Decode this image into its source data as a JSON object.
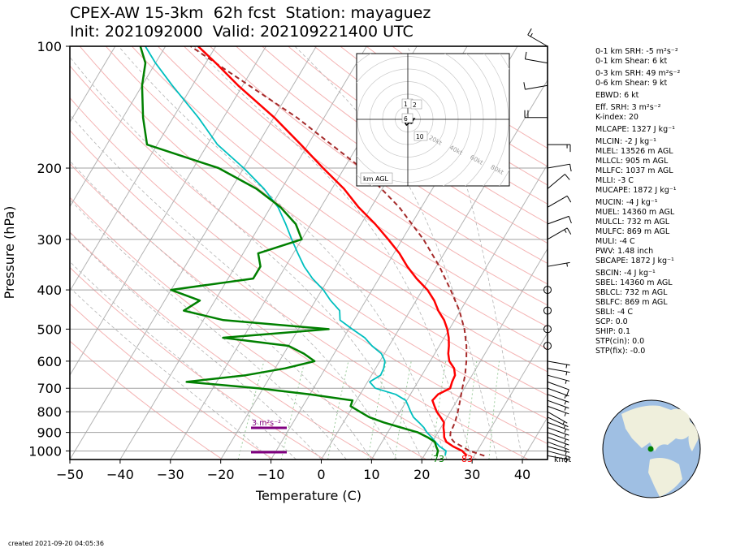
{
  "title": {
    "line1": "CPEX-AW 15-3km  62h fcst  Station: mayaguez",
    "line2": "Init: 2021092000  Valid: 202109221400 UTC"
  },
  "axes": {
    "ylabel": "Pressure (hPa)",
    "xlabel": "Temperature (C)",
    "pressure_ticks": [
      "100",
      "200",
      "300",
      "400",
      "500",
      "600",
      "700",
      "800",
      "900",
      "1000"
    ],
    "temp_ticks": [
      "−50",
      "−40",
      "−30",
      "−20",
      "−10",
      "0",
      "10",
      "20",
      "30",
      "40"
    ]
  },
  "surface_labels": {
    "dewpoint": "73",
    "temperature": "83"
  },
  "srh_label": "3 m²s⁻²",
  "barb_unit": "knot",
  "hodograph": {
    "ring_labels": [
      "20kt",
      "40kt",
      "60kt",
      "80kt"
    ],
    "level_labels": [
      "1",
      "2",
      "6",
      "10"
    ],
    "corner_label": "km AGL"
  },
  "params": [
    {
      "text": "0-1 km SRH: -5 m²s⁻²",
      "gap": false
    },
    {
      "text": "0-1 km Shear: 6 kt",
      "gap": false
    },
    {
      "text": "0-3 km SRH: 49 m²s⁻²",
      "gap": true
    },
    {
      "text": "0-6 km Shear: 9 kt",
      "gap": false
    },
    {
      "text": "EBWD: 6 kt",
      "gap": true
    },
    {
      "text": "Eff. SRH: 3 m²s⁻²",
      "gap": true
    },
    {
      "text": "K-index: 20",
      "gap": false
    },
    {
      "text": "MLCAPE: 1327 J kg⁻¹",
      "gap": true
    },
    {
      "text": "MLCIN: -2 J kg⁻¹",
      "gap": true
    },
    {
      "text": "MLEL: 13526 m AGL",
      "gap": false
    },
    {
      "text": "MLLCL: 905 m AGL",
      "gap": false
    },
    {
      "text": "MLLFC: 1037 m AGL",
      "gap": false
    },
    {
      "text": "MLLI: -3 C",
      "gap": false
    },
    {
      "text": "MUCAPE: 1872 J kg⁻¹",
      "gap": false
    },
    {
      "text": "MUCIN: -4 J kg⁻¹",
      "gap": true
    },
    {
      "text": "MUEL: 14360 m AGL",
      "gap": false
    },
    {
      "text": "MULCL: 732 m AGL",
      "gap": false
    },
    {
      "text": "MULFC: 869 m AGL",
      "gap": false
    },
    {
      "text": "MULI: -4 C",
      "gap": false
    },
    {
      "text": "PWV: 1.48 inch",
      "gap": false
    },
    {
      "text": "SBCAPE: 1872 J kg⁻¹",
      "gap": false
    },
    {
      "text": "SBCIN: -4 J kg⁻¹",
      "gap": true
    },
    {
      "text": "SBEL: 14360 m AGL",
      "gap": false
    },
    {
      "text": "SBLCL: 732 m AGL",
      "gap": false
    },
    {
      "text": "SBLFC: 869 m AGL",
      "gap": false
    },
    {
      "text": "SBLI: -4 C",
      "gap": false
    },
    {
      "text": "SCP: 0.0",
      "gap": false
    },
    {
      "text": "SHIP: 0.1",
      "gap": false
    },
    {
      "text": "STP(cin): 0.0",
      "gap": false
    },
    {
      "text": "STP(fix): -0.0",
      "gap": false
    }
  ],
  "created": "created 2021-09-20 04:05:36",
  "colors": {
    "temperature": "#ff0000",
    "dewpoint": "#008000",
    "wetbulb": "#00bfbf",
    "parcel": "#a52a2a",
    "srh_bar": "#800080",
    "isotherm": "#b3b3b3",
    "dry_adiabat": "#f4b3b3",
    "mixing_ratio": "#9ccc9c"
  },
  "chart_data": {
    "type": "skew-t",
    "title": "CPEX-AW 15-3km  62h fcst  Station: mayaguez",
    "xlabel": "Temperature (C)",
    "ylabel": "Pressure (hPa)",
    "xlim": [
      -50,
      45
    ],
    "ylim": [
      1050,
      100
    ],
    "y_scale": "log",
    "skew_c_per_decade": 48,
    "series": [
      {
        "name": "temperature",
        "pressure": [
          1028,
          1000,
          975,
          950,
          925,
          900,
          875,
          850,
          825,
          800,
          775,
          750,
          725,
          700,
          675,
          650,
          625,
          600,
          575,
          550,
          525,
          500,
          475,
          450,
          425,
          400,
          375,
          350,
          325,
          300,
          275,
          250,
          225,
          200,
          175,
          150,
          125,
          110,
          100
        ],
        "values": [
          28.5,
          27.0,
          24.7,
          22.8,
          21.8,
          21.2,
          20.5,
          20.0,
          18.7,
          17.3,
          16.2,
          15.1,
          15.5,
          17.2,
          16.8,
          16.6,
          15.6,
          13.8,
          12.7,
          11.9,
          10.9,
          9.6,
          7.9,
          5.6,
          3.6,
          1.0,
          -2.5,
          -5.8,
          -8.9,
          -12.8,
          -17.2,
          -22.5,
          -27.6,
          -34.2,
          -41.4,
          -49.9,
          -60.9,
          -68.0,
          -73.5
        ]
      },
      {
        "name": "dewpoint",
        "pressure": [
          1028,
          1000,
          975,
          950,
          925,
          900,
          875,
          850,
          825,
          800,
          775,
          750,
          725,
          700,
          675,
          650,
          625,
          600,
          575,
          550,
          525,
          500,
          475,
          450,
          425,
          400,
          375,
          350,
          325,
          300,
          275,
          250,
          225,
          200,
          175,
          150,
          125,
          110,
          100
        ],
        "values": [
          22.5,
          22.2,
          21.3,
          20.5,
          18.5,
          16.0,
          12.0,
          8.0,
          4.5,
          2.0,
          -0.5,
          -0.8,
          -10.0,
          -21.0,
          -36.0,
          -25.0,
          -18.0,
          -13.0,
          -16.0,
          -20.0,
          -34.0,
          -14.0,
          -36.0,
          -45.0,
          -43.0,
          -50.0,
          -35.0,
          -35.0,
          -37.0,
          -30.0,
          -33.0,
          -38.0,
          -45.0,
          -55.0,
          -72.0,
          -76.0,
          -80.0,
          -82.0,
          -85.0
        ]
      },
      {
        "name": "wet-bulb",
        "pressure": [
          1028,
          1000,
          975,
          950,
          925,
          900,
          875,
          850,
          825,
          800,
          775,
          750,
          725,
          700,
          675,
          650,
          625,
          600,
          575,
          550,
          525,
          500,
          475,
          450,
          425,
          400,
          375,
          350,
          325,
          300,
          275,
          250,
          225,
          200,
          175,
          150,
          125,
          110,
          100
        ],
        "values": [
          24.2,
          23.8,
          22.0,
          20.6,
          19.3,
          17.8,
          16.6,
          15.0,
          13.3,
          12.1,
          11.0,
          9.8,
          7.1,
          2.3,
          0.4,
          1.8,
          1.6,
          1.0,
          -0.6,
          -3.4,
          -5.8,
          -9.3,
          -12.8,
          -14.0,
          -17.0,
          -19.7,
          -23.2,
          -26.3,
          -29.1,
          -32.0,
          -35.0,
          -38.5,
          -43.5,
          -50.0,
          -58.0,
          -65.0,
          -74.0,
          -80.0,
          -84.0
        ]
      },
      {
        "name": "parcel",
        "pressure": [
          1028,
          1000,
          950,
          925,
          900,
          850,
          800,
          750,
          700,
          650,
          600,
          550,
          500,
          450,
          400,
          350,
          300,
          250,
          200,
          150,
          100
        ],
        "values": [
          32.0,
          28.5,
          24.3,
          23.0,
          22.5,
          22.2,
          21.5,
          20.6,
          19.6,
          18.6,
          17.2,
          15.4,
          13.0,
          9.8,
          5.6,
          0.6,
          -5.8,
          -14.4,
          -26.6,
          -45.4,
          -75.0
        ]
      }
    ],
    "wind_barbs": {
      "unit": "knot",
      "pressure": [
        1028,
        1000,
        975,
        950,
        925,
        900,
        875,
        850,
        825,
        800,
        775,
        750,
        725,
        700,
        675,
        650,
        625,
        600,
        550,
        500,
        450,
        400,
        350,
        300,
        275,
        250,
        225,
        200,
        175,
        150,
        125,
        110,
        100
      ],
      "speed_kt": [
        6,
        7,
        7,
        6,
        5,
        5,
        4,
        4,
        4,
        3,
        4,
        5,
        6,
        7,
        8,
        7,
        6,
        4,
        0,
        0,
        0,
        0,
        7,
        13,
        8,
        8,
        9,
        10,
        15,
        20,
        10,
        12,
        14
      ],
      "dir_deg": [
        100,
        105,
        105,
        110,
        110,
        110,
        110,
        110,
        115,
        120,
        110,
        110,
        110,
        110,
        110,
        105,
        100,
        100,
        0,
        0,
        0,
        0,
        80,
        60,
        70,
        60,
        50,
        80,
        90,
        270,
        260,
        280,
        300
      ]
    },
    "hodograph": {
      "ring_labels": [
        "20kt",
        "40kt",
        "60kt",
        "80kt"
      ],
      "u_kt": [
        -2.0,
        1.5,
        2.0,
        1.6,
        -1.0,
        -2.0,
        0.5,
        0.5,
        5.0,
        3.0,
        4.0,
        2.2
      ],
      "v_kt": [
        0.5,
        0.8,
        1.3,
        -2.5,
        -4.5,
        -3.0,
        -0.5,
        0.0,
        0.5,
        -2.5,
        -2.5,
        -3.5
      ],
      "labels": [
        "1",
        "2",
        "6",
        "10"
      ]
    },
    "surface_labels": {
      "dewpoint": "73",
      "temperature": "83"
    },
    "srh_bar_label": "3 m²s⁻²"
  }
}
